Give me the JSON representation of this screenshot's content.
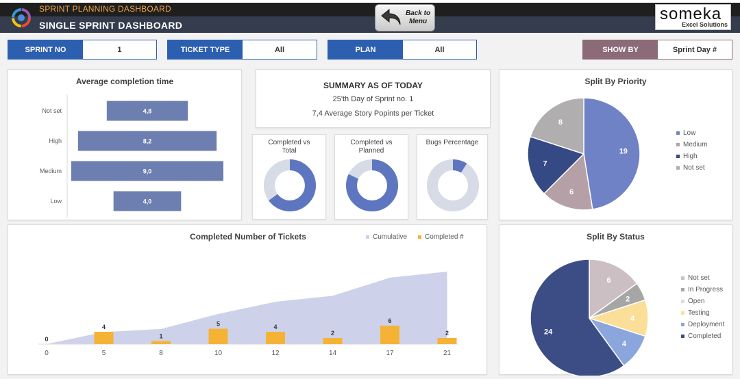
{
  "header": {
    "app_title": "SPRINT PLANNING DASHBOARD",
    "page_title": "SINGLE SPRINT DASHBOARD",
    "back_button_label": "Back to\nMenu",
    "brand_name": "someka",
    "brand_sub": "Excel Solutions"
  },
  "filters": [
    {
      "label": "SPRINT NO",
      "value": "1"
    },
    {
      "label": "TICKET TYPE",
      "value": "All"
    },
    {
      "label": "PLAN",
      "value": "All"
    },
    {
      "label": "SHOW BY",
      "value": "Sprint Day #"
    }
  ],
  "colors": {
    "header_orange": "#f0a44a",
    "filter_blue": "#2c5fb0",
    "show_by_mauve": "#8c6a78",
    "bar_slate": "#6d7fb0",
    "donut_blue": "#5e76c0",
    "donut_grey": "#d6dbe6",
    "area_lavender": "#cdd2ea",
    "completed_gold": "#f5b335"
  },
  "avg_completion": {
    "title": "Average completion time",
    "chart_data": {
      "type": "bar",
      "orientation": "horizontal",
      "categories": [
        "Not set",
        "High",
        "Medium",
        "Low"
      ],
      "values": [
        4.8,
        8.2,
        9.0,
        4.0
      ],
      "value_labels": [
        "4,8",
        "8,2",
        "9,0",
        "4,0"
      ],
      "title": "Average completion time"
    }
  },
  "summary": {
    "heading": "SUMMARY AS OF TODAY",
    "line1": "25'th Day of Sprint no. 1",
    "line2": "7,4 Average Story Popints per Ticket"
  },
  "donuts": [
    {
      "title": "Completed vs\nTotal",
      "fraction": 0.65
    },
    {
      "title": "Completed vs\nPlanned",
      "fraction": 0.82
    },
    {
      "title": "Bugs Percentage",
      "fraction": 0.09
    }
  ],
  "priority": {
    "title": "Split By Priority",
    "chart_data": {
      "type": "pie",
      "title": "Split By Priority",
      "series": [
        {
          "name": "Low",
          "value": 19,
          "color": "#6f82c6"
        },
        {
          "name": "Medium",
          "value": 6,
          "color": "#b6a0a8"
        },
        {
          "name": "High",
          "value": 7,
          "color": "#354a84"
        },
        {
          "name": "Not set",
          "value": 8,
          "color": "#b0aeae"
        }
      ],
      "legend": "right"
    }
  },
  "completed": {
    "title": "Completed Number of Tickets",
    "legend_cumulative": "Cumulative",
    "legend_completed": "Completed #",
    "chart_data": {
      "type": "bar",
      "title": "Completed Number of Tickets",
      "x": [
        0,
        5,
        8,
        10,
        12,
        14,
        17,
        21
      ],
      "x_tick_labels": [
        "0",
        "5",
        "8",
        "10",
        "12",
        "14",
        "17",
        "21"
      ],
      "series": [
        {
          "name": "Cumulative",
          "type": "area",
          "values": [
            0,
            4,
            5,
            10,
            14,
            16,
            22,
            24
          ]
        },
        {
          "name": "Completed #",
          "type": "bar",
          "values": [
            0,
            4,
            1,
            5,
            4,
            2,
            6,
            2
          ]
        }
      ],
      "legend": "top-right"
    }
  },
  "status": {
    "title": "Split By Status",
    "chart_data": {
      "type": "pie",
      "title": "Split By Status",
      "series": [
        {
          "name": "Not set",
          "value": 6,
          "color": "#ccbfc4"
        },
        {
          "name": "In Progress",
          "value": 2,
          "color": "#a6a6a6"
        },
        {
          "name": "Open",
          "value": 0,
          "color": "#d9dce6"
        },
        {
          "name": "Testing",
          "value": 4,
          "color": "#fbdf98"
        },
        {
          "name": "Deployment",
          "value": 4,
          "color": "#8aa6dc"
        },
        {
          "name": "Completed",
          "value": 24,
          "color": "#3c4d86"
        }
      ],
      "legend": "right"
    }
  }
}
